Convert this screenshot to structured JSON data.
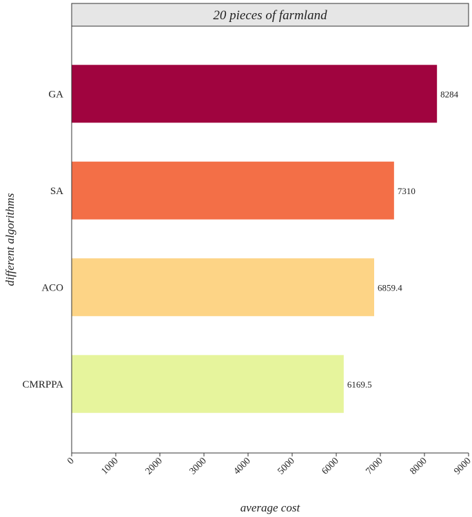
{
  "chart_data": {
    "type": "bar",
    "orientation": "horizontal",
    "title": "20 pieces of farmland",
    "xlabel": "average cost",
    "ylabel": "different algorithms",
    "categories": [
      "GA",
      "SA",
      "ACO",
      "CMRPPA"
    ],
    "values": [
      8284,
      7310,
      6859.4,
      6169.5
    ],
    "value_labels": [
      "8284",
      "7310",
      "6859.4",
      "6169.5"
    ],
    "colors": [
      "#a0043f",
      "#f36f47",
      "#fdd486",
      "#e6f49c"
    ],
    "xlim": [
      0,
      9000
    ],
    "xticks": [
      0,
      1000,
      2000,
      3000,
      4000,
      5000,
      6000,
      7000,
      8000,
      9000
    ],
    "xtick_labels": [
      "0",
      "1000",
      "2000",
      "3000",
      "4000",
      "5000",
      "6000",
      "7000",
      "8000",
      "9000"
    ],
    "grid": false,
    "legend": "none"
  }
}
